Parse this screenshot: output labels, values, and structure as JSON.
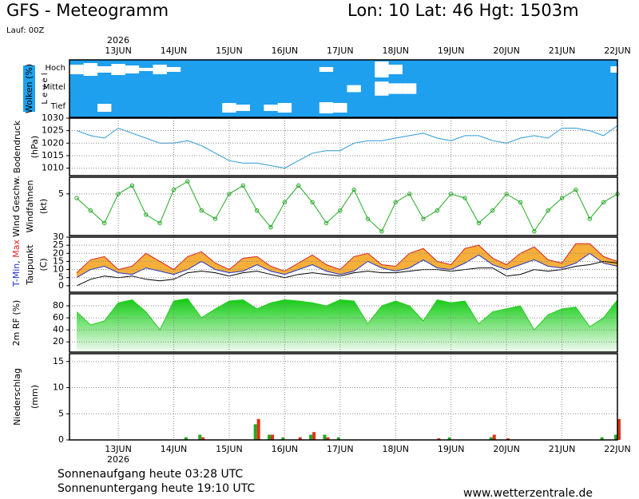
{
  "header": {
    "title": "GFS - Meteogramm",
    "location": "Lon: 10 Lat: 46 Hgt: 1503m",
    "run": "Lauf: 00Z"
  },
  "footer": {
    "sunrise": "Sonnenaufgang heute 03:28 UTC",
    "sunset": "Sonnenuntergang heute 19:10 UTC",
    "source": "www.wetterzentrale.de"
  },
  "chart_data": [
    {
      "type": "clouds",
      "ylabel": "Wolken (%)",
      "level_label": "L e v e l",
      "year": "2026",
      "background": "#1ea0ee",
      "color": "#ffffff",
      "categories": [
        null,
        null,
        null,
        "13JUN",
        null,
        null,
        null,
        "14JUN",
        null,
        null,
        null,
        "15JUN",
        null,
        null,
        null,
        "16JUN",
        null,
        null,
        null,
        "17JUN",
        null,
        null,
        null,
        "18JUN",
        null,
        null,
        null,
        "19JUN",
        null,
        null,
        null,
        "20JUN",
        null,
        null,
        null,
        "21JUN",
        null,
        null,
        null,
        "22JUN"
      ],
      "series": [
        {
          "name": "Hoch",
          "values": [
            60,
            80,
            40,
            70,
            50,
            20,
            60,
            30,
            0,
            0,
            0,
            0,
            0,
            0,
            0,
            0,
            0,
            0,
            30,
            0,
            0,
            0,
            100,
            60,
            0,
            0,
            0,
            0,
            0,
            0,
            0,
            0,
            0,
            0,
            0,
            0,
            0,
            0,
            0,
            40
          ]
        },
        {
          "name": "Mittel",
          "values": [
            0,
            0,
            0,
            0,
            0,
            0,
            0,
            0,
            0,
            0,
            0,
            0,
            0,
            0,
            0,
            0,
            0,
            0,
            0,
            0,
            40,
            0,
            80,
            60,
            60,
            0,
            0,
            0,
            0,
            0,
            0,
            0,
            0,
            0,
            0,
            0,
            0,
            0,
            0,
            0
          ]
        },
        {
          "name": "Tief",
          "values": [
            0,
            0,
            50,
            0,
            0,
            0,
            0,
            0,
            0,
            0,
            0,
            60,
            40,
            0,
            40,
            60,
            0,
            0,
            70,
            60,
            0,
            0,
            0,
            0,
            0,
            0,
            0,
            0,
            0,
            0,
            0,
            0,
            0,
            0,
            0,
            0,
            0,
            0,
            0,
            0
          ]
        }
      ]
    },
    {
      "type": "line",
      "ylabel_lines": [
        "Bodendruck",
        "(hPa)"
      ],
      "color": "#2a9bd8",
      "ylim": [
        1007,
        1030
      ],
      "yticks": [
        1010,
        1015,
        1020,
        1025,
        1030
      ],
      "grid": true,
      "categories": [
        null,
        null,
        null,
        "13JUN",
        null,
        null,
        null,
        "14JUN",
        null,
        null,
        null,
        "15JUN",
        null,
        null,
        null,
        "16JUN",
        null,
        null,
        null,
        "17JUN",
        null,
        null,
        null,
        "18JUN",
        null,
        null,
        null,
        "19JUN",
        null,
        null,
        null,
        "20JUN",
        null,
        null,
        null,
        "21JUN",
        null,
        null,
        null,
        "22JUN"
      ],
      "values": [
        1025,
        1023,
        1022,
        1026,
        1024,
        1022,
        1020,
        1020,
        1021,
        1019,
        1016,
        1013,
        1012,
        1012,
        1011,
        1010,
        1013,
        1016,
        1017,
        1017,
        1020,
        1021,
        1021,
        1022,
        1023,
        1024,
        1022,
        1021,
        1023,
        1023,
        1021,
        1020,
        1022,
        1023,
        1022,
        1026,
        1026,
        1025,
        1023,
        1027
      ]
    },
    {
      "type": "line-markers",
      "ylabel_lines": [
        "Windfahnen",
        "(kt)"
      ],
      "ylim": [
        0,
        7
      ],
      "yticks": [
        5
      ],
      "grid": true,
      "categories": [
        null,
        null,
        null,
        "13JUN",
        null,
        null,
        null,
        "14JUN",
        null,
        null,
        null,
        "15JUN",
        null,
        null,
        null,
        "16JUN",
        null,
        null,
        null,
        "17JUN",
        null,
        null,
        null,
        "18JUN",
        null,
        null,
        null,
        "19JUN",
        null,
        null,
        null,
        "20JUN",
        null,
        null,
        null,
        "21JUN",
        null,
        null,
        null,
        "22JUN"
      ],
      "series": [
        {
          "name": "Wind Geschw.",
          "color": "#22aa22",
          "values": [
            4.5,
            3,
            1.5,
            5,
            6,
            2.5,
            1.5,
            5.5,
            6.5,
            3,
            2,
            5,
            6,
            3,
            1,
            4,
            6,
            4,
            1.5,
            3,
            5.5,
            2,
            0.5,
            4,
            5,
            2,
            3,
            5,
            4.5,
            1.5,
            3,
            5,
            4,
            0.5,
            3,
            4.5,
            5.5,
            2,
            4,
            5
          ]
        }
      ]
    },
    {
      "type": "range-area",
      "ylabel_lines": [
        "Taupunkt",
        "(C)"
      ],
      "ylabel_joiner": ", ",
      "fill": "#f5a623",
      "ylim": [
        -4,
        30
      ],
      "yticks": [
        0,
        5,
        10,
        15,
        20,
        25,
        30
      ],
      "grid": true,
      "categories": [
        null,
        null,
        null,
        "13JUN",
        null,
        null,
        null,
        "14JUN",
        null,
        null,
        null,
        "15JUN",
        null,
        null,
        null,
        "16JUN",
        null,
        null,
        null,
        "17JUN",
        null,
        null,
        null,
        "18JUN",
        null,
        null,
        null,
        "19JUN",
        null,
        null,
        null,
        "20JUN",
        null,
        null,
        null,
        "21JUN",
        null,
        null,
        null,
        "22JUN"
      ],
      "series": [
        {
          "name": "T-Min",
          "color": "#2233cc",
          "values": [
            5,
            10,
            12,
            8,
            7,
            11,
            9,
            7,
            10,
            15,
            10,
            8,
            9,
            13,
            9,
            7,
            10,
            13,
            9,
            7,
            9,
            15,
            11,
            9,
            11,
            16,
            11,
            10,
            14,
            19,
            13,
            10,
            13,
            16,
            12,
            11,
            14,
            20,
            14,
            12
          ]
        },
        {
          "name": "Max",
          "color": "#dd2222",
          "values": [
            8,
            16,
            18,
            10,
            12,
            20,
            15,
            10,
            18,
            21,
            14,
            10,
            17,
            18,
            12,
            9,
            14,
            19,
            13,
            10,
            18,
            20,
            13,
            12,
            20,
            23,
            15,
            13,
            23,
            25,
            17,
            13,
            20,
            24,
            16,
            14,
            26,
            26,
            18,
            15
          ]
        },
        {
          "name": "Taupunkt",
          "color": "#000000",
          "values": [
            0,
            4,
            6,
            5,
            6,
            4,
            3,
            4,
            8,
            9,
            8,
            6,
            8,
            9,
            7,
            5,
            7,
            8,
            7,
            6,
            8,
            9,
            8,
            8,
            9,
            10,
            10,
            9,
            10,
            11,
            11,
            6,
            7,
            10,
            9,
            10,
            12,
            13,
            15,
            14
          ]
        }
      ]
    },
    {
      "type": "area",
      "ylabel": "2m RF (%)",
      "color": "#22cc22",
      "ylim": [
        3,
        100
      ],
      "yticks": [
        20,
        40,
        60,
        80
      ],
      "grid": true,
      "categories": [
        null,
        null,
        null,
        "13JUN",
        null,
        null,
        null,
        "14JUN",
        null,
        null,
        null,
        "15JUN",
        null,
        null,
        null,
        "16JUN",
        null,
        null,
        null,
        "17JUN",
        null,
        null,
        null,
        "18JUN",
        null,
        null,
        null,
        "19JUN",
        null,
        null,
        null,
        "20JUN",
        null,
        null,
        null,
        "21JUN",
        null,
        null,
        null,
        "22JUN"
      ],
      "values": [
        70,
        48,
        55,
        85,
        90,
        70,
        40,
        88,
        92,
        60,
        75,
        88,
        90,
        75,
        85,
        90,
        88,
        85,
        80,
        90,
        88,
        50,
        80,
        88,
        80,
        55,
        90,
        85,
        88,
        50,
        70,
        75,
        80,
        40,
        65,
        75,
        78,
        45,
        60,
        90
      ]
    },
    {
      "type": "bar",
      "ylabel_lines": [
        "Niederschlag",
        "(mm)"
      ],
      "ylim": [
        0,
        16.5
      ],
      "yticks": [
        0,
        5,
        10,
        15
      ],
      "grid": true,
      "year": "2026",
      "categories": [
        null,
        null,
        null,
        "13JUN",
        null,
        null,
        null,
        "14JUN",
        null,
        null,
        null,
        "15JUN",
        null,
        null,
        null,
        "16JUN",
        null,
        null,
        null,
        "17JUN",
        null,
        null,
        null,
        "18JUN",
        null,
        null,
        null,
        "19JUN",
        null,
        null,
        null,
        "20JUN",
        null,
        null,
        null,
        "21JUN",
        null,
        null,
        null,
        "22JUN"
      ],
      "series": [
        {
          "color": "#22aa22",
          "values": [
            0,
            0,
            0,
            0,
            0,
            0,
            0,
            0,
            0.5,
            1,
            0,
            0,
            0,
            3,
            1,
            0.5,
            0,
            1,
            1,
            0.5,
            0,
            0,
            0,
            0,
            0,
            0,
            0,
            0.5,
            0,
            0,
            0.5,
            0,
            0,
            0,
            0,
            0,
            0,
            0,
            0.5,
            1
          ]
        },
        {
          "color": "#dd3311",
          "values": [
            0,
            0,
            0,
            0,
            0,
            0,
            0,
            0,
            0,
            0.5,
            0,
            0,
            0,
            4,
            1,
            0,
            0.5,
            1.5,
            0.5,
            0,
            0,
            0,
            0,
            0,
            0,
            0,
            0.3,
            0,
            0,
            0,
            1,
            0.3,
            0,
            0,
            0,
            0,
            0,
            0,
            0,
            4
          ]
        }
      ]
    }
  ]
}
